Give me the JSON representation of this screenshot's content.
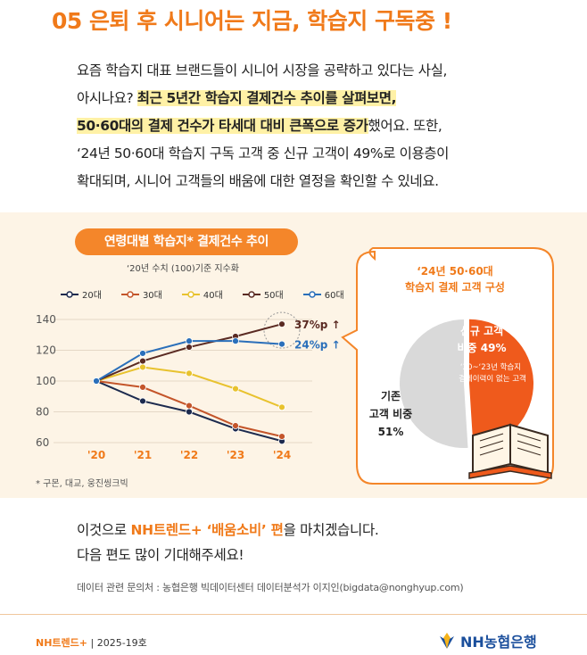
{
  "headline": "05 은퇴 후 시니어는 지금, 학습지 구독중 !",
  "intro": {
    "line1": "요즘 학습지 대표 브랜드들이 시니어 시장을 공략하고 있다는 사실,",
    "line2_a": "아시나요? ",
    "line2_b": "최근 5년간 학습지 결제건수 추이를 살펴보면,",
    "line3_a": "50·60대의 결제 건수가 타세대 대비 큰폭으로 증가",
    "line3_b": "했어요. 또한,",
    "line4": "‘24년 50·60대 학습지 구독 고객 중 신규 고객이 49%로 이용층이",
    "line5": "확대되며, 시니어 고객들의 배움에 대한 열정을 확인할 수 있네요."
  },
  "chart_data": [
    {
      "type": "line",
      "title": "연령대별 학습지* 결제건수 추이",
      "subtitle": "‘20년 수치 (100)기준 지수화",
      "x": [
        "'20",
        "'21",
        "'22",
        "'23",
        "'24"
      ],
      "ylim": [
        60,
        140
      ],
      "yticks": [
        "60",
        "80",
        "100",
        "120",
        "140"
      ],
      "series": [
        {
          "name": "20대",
          "color": "#1c2a4e",
          "values": [
            100,
            87,
            80,
            69,
            61
          ]
        },
        {
          "name": "30대",
          "color": "#c4552a",
          "values": [
            100,
            96,
            84,
            71,
            64
          ]
        },
        {
          "name": "40대",
          "color": "#e8c22e",
          "values": [
            100,
            109,
            105,
            95,
            83
          ]
        },
        {
          "name": "50대",
          "color": "#5a2a22",
          "values": [
            100,
            113,
            122,
            129,
            137
          ]
        },
        {
          "name": "60대",
          "color": "#2a6fba",
          "values": [
            100,
            118,
            126,
            126,
            124
          ]
        }
      ],
      "annotations": [
        {
          "series": "50대",
          "label": "37%p",
          "arrow": "↑"
        },
        {
          "series": "60대",
          "label": "24%p",
          "arrow": "↑"
        }
      ],
      "grid": true,
      "legend": "top"
    },
    {
      "type": "pie",
      "title_line1": "‘24년 50·60대",
      "title_line2": "학습지 결제 고객 구성",
      "slices": [
        {
          "label_line1": "신규 고객",
          "label_line2": "비중 49%",
          "note_line1": "‘20~‘23년 학습지",
          "note_line2": "결제이력이 없는 고객",
          "value": 49,
          "color": "#ef5a1c"
        },
        {
          "label_line1": "기존",
          "label_line2": "고객 비중",
          "label_line3": "51%",
          "value": 51,
          "color": "#d9d9d9"
        }
      ]
    }
  ],
  "source_note": "* 구몬, 대교, 웅진씽크빅",
  "outro": {
    "line1_a": "이것으로 ",
    "line1_b": "NH트렌드+ ‘배움소비’ 편",
    "line1_c": "을 마치겠습니다.",
    "line2": "다음 편도 많이 기대해주세요!"
  },
  "contact": "데이터 관련 문의처 : 농협은행 빅데이터센터 데이터분석가 이지인(bigdata@nonghyup.com)",
  "footer": {
    "brand": "NH트렌드+",
    "issue": " | 2025-19호",
    "logo_text": "NH농협은행"
  },
  "colors": {
    "accent": "#f07a1a",
    "panel": "#fdf4e6",
    "brand_blue": "#1b4f9c"
  }
}
